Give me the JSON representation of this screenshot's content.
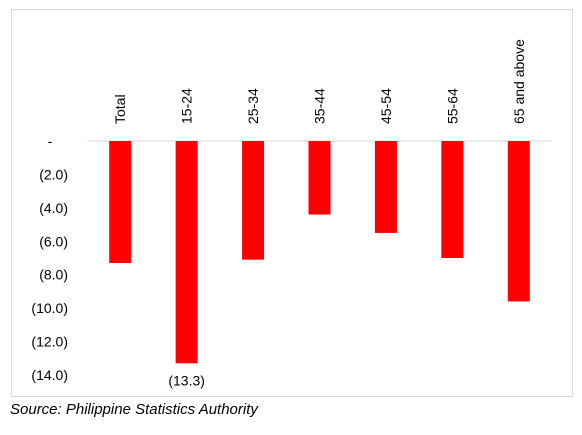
{
  "chart_data": {
    "type": "bar",
    "categories": [
      "Total",
      "15-24",
      "25-34",
      "35-44",
      "45-54",
      "55-64",
      "65 and above"
    ],
    "values": [
      -7.3,
      -13.3,
      -7.1,
      -4.4,
      -5.5,
      -7.0,
      -9.6
    ],
    "title": "",
    "xlabel": "",
    "ylabel": "",
    "ylim": [
      -14.0,
      0
    ],
    "yticks": [
      0,
      -2.0,
      -4.0,
      -6.0,
      -8.0,
      -10.0,
      -12.0,
      -14.0
    ],
    "ytick_labels": [
      "-",
      "(2.0)",
      "(4.0)",
      "(6.0)",
      "(8.0)",
      "(10.0)",
      "(12.0)",
      "(14.0)"
    ],
    "data_labels": [
      {
        "category": "15-24",
        "text": "(13.3)"
      }
    ],
    "grid": false,
    "legend": "none",
    "bar_color": "#ff0000"
  },
  "source": "Source: Philippine Statistics Authority"
}
